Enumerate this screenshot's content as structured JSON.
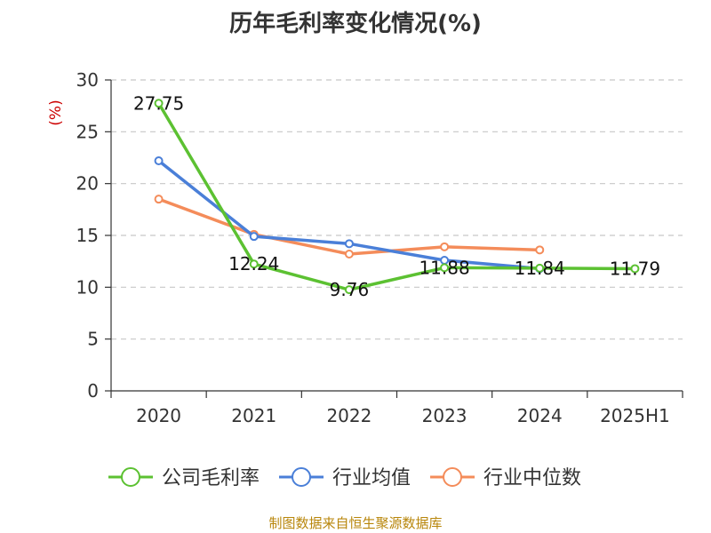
{
  "chart_data": {
    "type": "line",
    "title": "历年毛利率变化情况(%)",
    "ylabel": "(%)",
    "categories": [
      "2020",
      "2021",
      "2022",
      "2023",
      "2024",
      "2025H1"
    ],
    "ylim": [
      0,
      30
    ],
    "yticks": [
      0,
      5,
      10,
      15,
      20,
      25,
      30
    ],
    "grid": true,
    "legend_position": "bottom",
    "series": [
      {
        "name": "公司毛利率",
        "color": "#5cc132",
        "values": [
          27.75,
          12.24,
          9.76,
          11.88,
          11.84,
          11.79
        ],
        "labels": [
          "27.75",
          "12.24",
          "9.76",
          "11.88",
          "11.84",
          "11.79"
        ]
      },
      {
        "name": "行业均值",
        "color": "#4a7fd8",
        "values": [
          22.2,
          14.9,
          14.2,
          12.6,
          11.8,
          null
        ]
      },
      {
        "name": "行业中位数",
        "color": "#f48c5a",
        "values": [
          18.5,
          15.1,
          13.2,
          13.9,
          13.6,
          null
        ]
      }
    ]
  },
  "source": "制图数据来自恒生聚源数据库"
}
